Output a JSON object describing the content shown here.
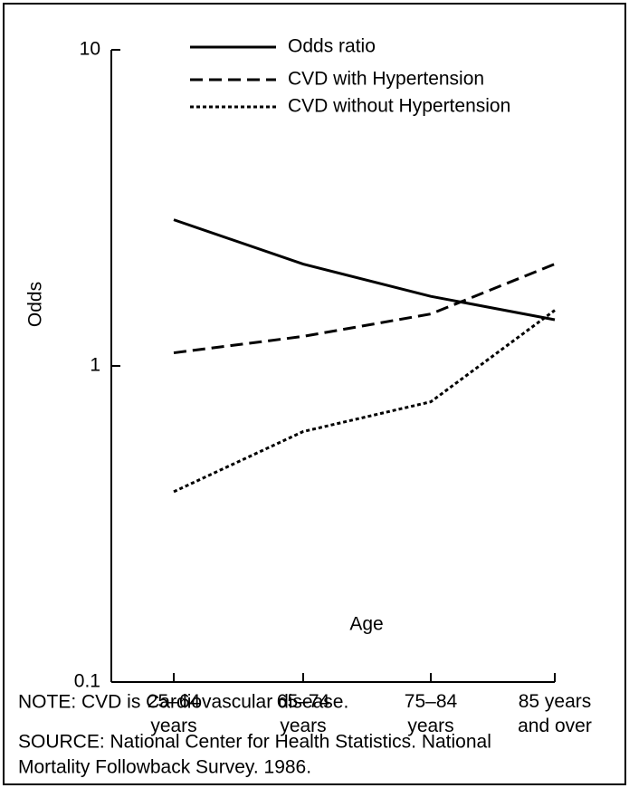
{
  "chart_data": {
    "type": "line",
    "categories": [
      [
        "25–64",
        "years"
      ],
      [
        "65–74",
        "years"
      ],
      [
        "75–84",
        "years"
      ],
      [
        "85 years",
        "and over"
      ]
    ],
    "series": [
      {
        "name": "Odds ratio",
        "color": "#000000",
        "dash": "solid",
        "values": [
          2.9,
          2.1,
          1.66,
          1.4
        ]
      },
      {
        "name": "CVD with Hypertension",
        "color": "#000000",
        "dash": "dashed",
        "values": [
          1.1,
          1.24,
          1.46,
          2.1
        ]
      },
      {
        "name": "CVD without Hypertension",
        "color": "#000000",
        "dash": "dotted",
        "values": [
          0.4,
          0.62,
          0.77,
          1.5
        ]
      }
    ],
    "ylabel": "Odds",
    "xlabel": "Age",
    "ylim": [
      0.1,
      10
    ],
    "yticks": [
      0.1,
      1,
      10
    ],
    "log_y": true,
    "notes": [
      "NOTE: CVD is Cardiovascular disease.",
      "SOURCE: National Center for Health Statistics. National",
      "Mortality Followback Survey. 1986."
    ]
  }
}
